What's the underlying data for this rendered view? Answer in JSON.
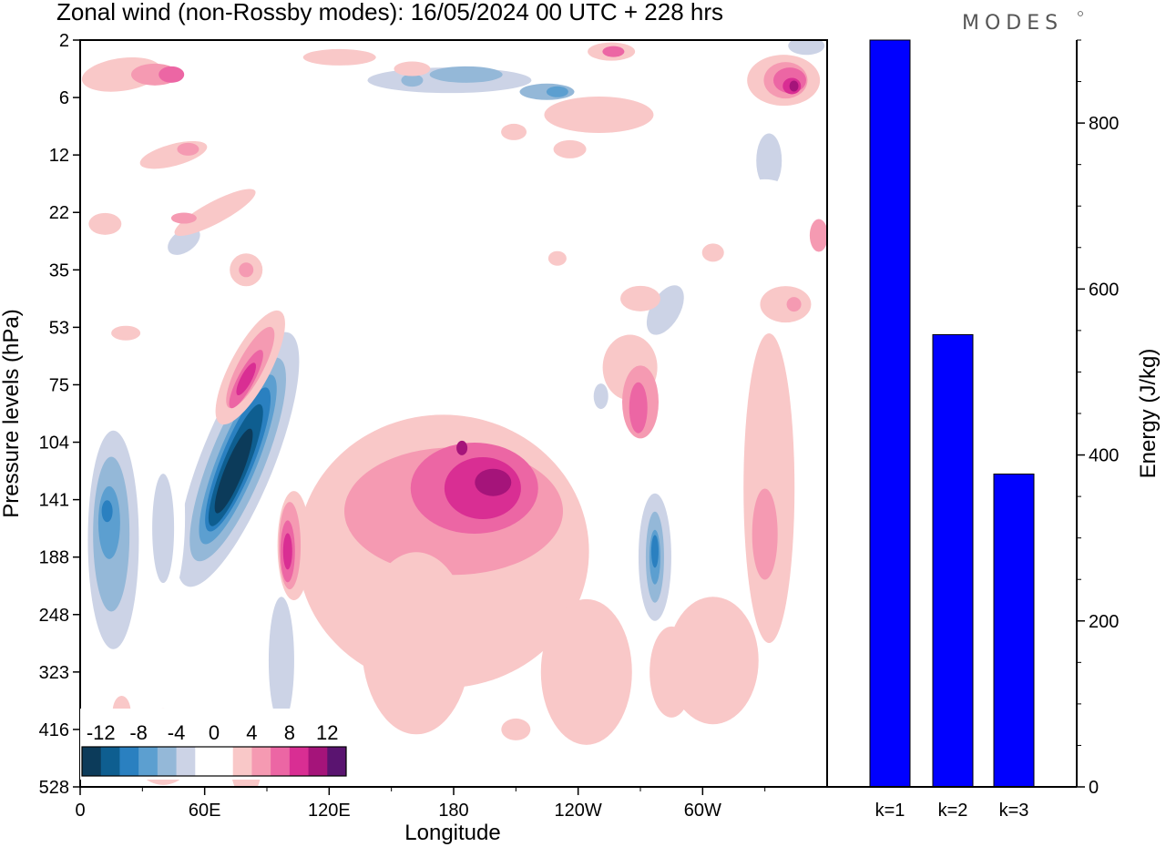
{
  "title": "Zonal wind (non-Rossby modes):  16/05/2024  00 UTC  + 228 hrs",
  "logo": "MODES",
  "chart_data": [
    {
      "type": "heatmap",
      "title": "Zonal wind (non-Rossby modes):  16/05/2024  00 UTC  + 228 hrs",
      "xlabel": "Longitude",
      "ylabel": "Pressure levels (hPa)",
      "x_ticks": [
        "0",
        "60E",
        "120E",
        "180",
        "120W",
        "60W"
      ],
      "x_tick_values": [
        0,
        60,
        120,
        180,
        240,
        300
      ],
      "xlim": [
        0,
        360
      ],
      "y_ticks": [
        "2",
        "6",
        "12",
        "22",
        "35",
        "53",
        "75",
        "104",
        "141",
        "188",
        "248",
        "323",
        "416",
        "528"
      ],
      "colorbar": {
        "tick_labels": [
          "-12",
          "-8",
          "-4",
          "0",
          "4",
          "8",
          "12"
        ],
        "levels": [
          -14,
          -12,
          -10,
          -8,
          -6,
          -4,
          -2,
          0,
          2,
          4,
          6,
          8,
          10,
          12,
          14
        ],
        "colors": [
          "#0c3b5a",
          "#0e5e90",
          "#2a80c0",
          "#5c9fd0",
          "#94b8d8",
          "#ccd3e6",
          "#ffffff",
          "#ffffff",
          "#f9c8c8",
          "#f59ab2",
          "#ec66a4",
          "#d92e93",
          "#a5147a",
          "#5a1470"
        ]
      },
      "features": [
        {
          "kind": "negative",
          "lon": 73,
          "level": "104",
          "peak": -14
        },
        {
          "kind": "negative",
          "lon": 15,
          "level": "141",
          "peak": -9
        },
        {
          "kind": "negative",
          "lon": 277,
          "level": "188",
          "peak": -10
        },
        {
          "kind": "negative",
          "lon": 178,
          "level": "6",
          "peak": -7
        },
        {
          "kind": "positive",
          "lon": 192,
          "level": "104",
          "peak": 9
        },
        {
          "kind": "positive",
          "lon": 100,
          "level": "141",
          "peak": 9
        },
        {
          "kind": "positive",
          "lon": 75,
          "level": "75",
          "peak": 9
        },
        {
          "kind": "positive",
          "lon": 342,
          "level": "6",
          "peak": 11
        }
      ]
    },
    {
      "type": "bar",
      "categories": [
        "k=1",
        "k=2",
        "k=3"
      ],
      "values": [
        900,
        545,
        377
      ],
      "ylabel": "Energy (J/kg)",
      "ylim": [
        0,
        900
      ],
      "y_ticks": [
        0,
        200,
        400,
        600,
        800
      ],
      "bar_color": "#0000ff"
    }
  ]
}
